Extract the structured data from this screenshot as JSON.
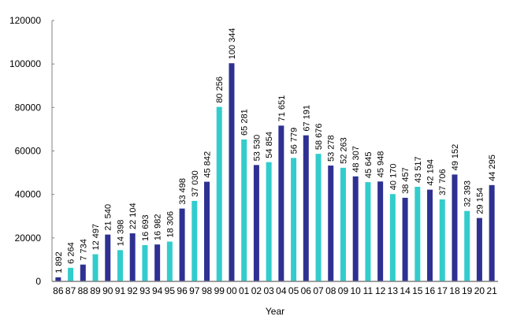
{
  "chart_data": {
    "type": "bar",
    "title": "",
    "xlabel": "Year",
    "ylabel": "",
    "ylim": [
      0,
      120000
    ],
    "yticks": [
      0,
      20000,
      40000,
      60000,
      80000,
      100000,
      120000
    ],
    "grid": false,
    "legend": null,
    "categories": [
      "86",
      "87",
      "88",
      "89",
      "90",
      "91",
      "92",
      "93",
      "94",
      "95",
      "96",
      "97",
      "98",
      "99",
      "00",
      "01",
      "02",
      "03",
      "04",
      "05",
      "06",
      "07",
      "08",
      "09",
      "10",
      "11",
      "12",
      "13",
      "14",
      "15",
      "16",
      "17",
      "18",
      "19",
      "20",
      "21"
    ],
    "values": [
      1892,
      6264,
      7734,
      12497,
      21540,
      14398,
      22104,
      16693,
      16982,
      18306,
      33498,
      37030,
      45842,
      80256,
      100344,
      65281,
      53530,
      54854,
      71651,
      56779,
      67191,
      58676,
      53278,
      52263,
      48307,
      45645,
      45948,
      40170,
      38457,
      43517,
      42194,
      37706,
      49152,
      32393,
      29154,
      44295
    ],
    "data_labels": [
      "1 892",
      "6 264",
      "7 734",
      "12 497",
      "21 540",
      "14 398",
      "22 104",
      "16 693",
      "16 982",
      "18 306",
      "33 498",
      "37 030",
      "45 842",
      "80 256",
      "100 344",
      "65 281",
      "53 530",
      "54 854",
      "71 651",
      "56 779",
      "67 191",
      "58 676",
      "53 278",
      "52 263",
      "48 307",
      "45 645",
      "45 948",
      "40 170",
      "38 457",
      "43 517",
      "42 194",
      "37 706",
      "49 152",
      "32 393",
      "29 154",
      "44 295"
    ],
    "bar_colors": [
      "#2E3192",
      "#33CCCC",
      "#2E3192",
      "#33CCCC",
      "#2E3192",
      "#33CCCC",
      "#2E3192",
      "#33CCCC",
      "#2E3192",
      "#33CCCC",
      "#2E3192",
      "#33CCCC",
      "#2E3192",
      "#33CCCC",
      "#2E3192",
      "#33CCCC",
      "#2E3192",
      "#33CCCC",
      "#2E3192",
      "#33CCCC",
      "#2E3192",
      "#33CCCC",
      "#2E3192",
      "#33CCCC",
      "#2E3192",
      "#33CCCC",
      "#2E3192",
      "#33CCCC",
      "#2E3192",
      "#33CCCC",
      "#2E3192",
      "#33CCCC",
      "#2E3192",
      "#33CCCC",
      "#2E3192",
      "#2E3192"
    ],
    "colors": {
      "dark": "#2E3192",
      "light": "#33CCCC",
      "axis": "#808080"
    }
  }
}
